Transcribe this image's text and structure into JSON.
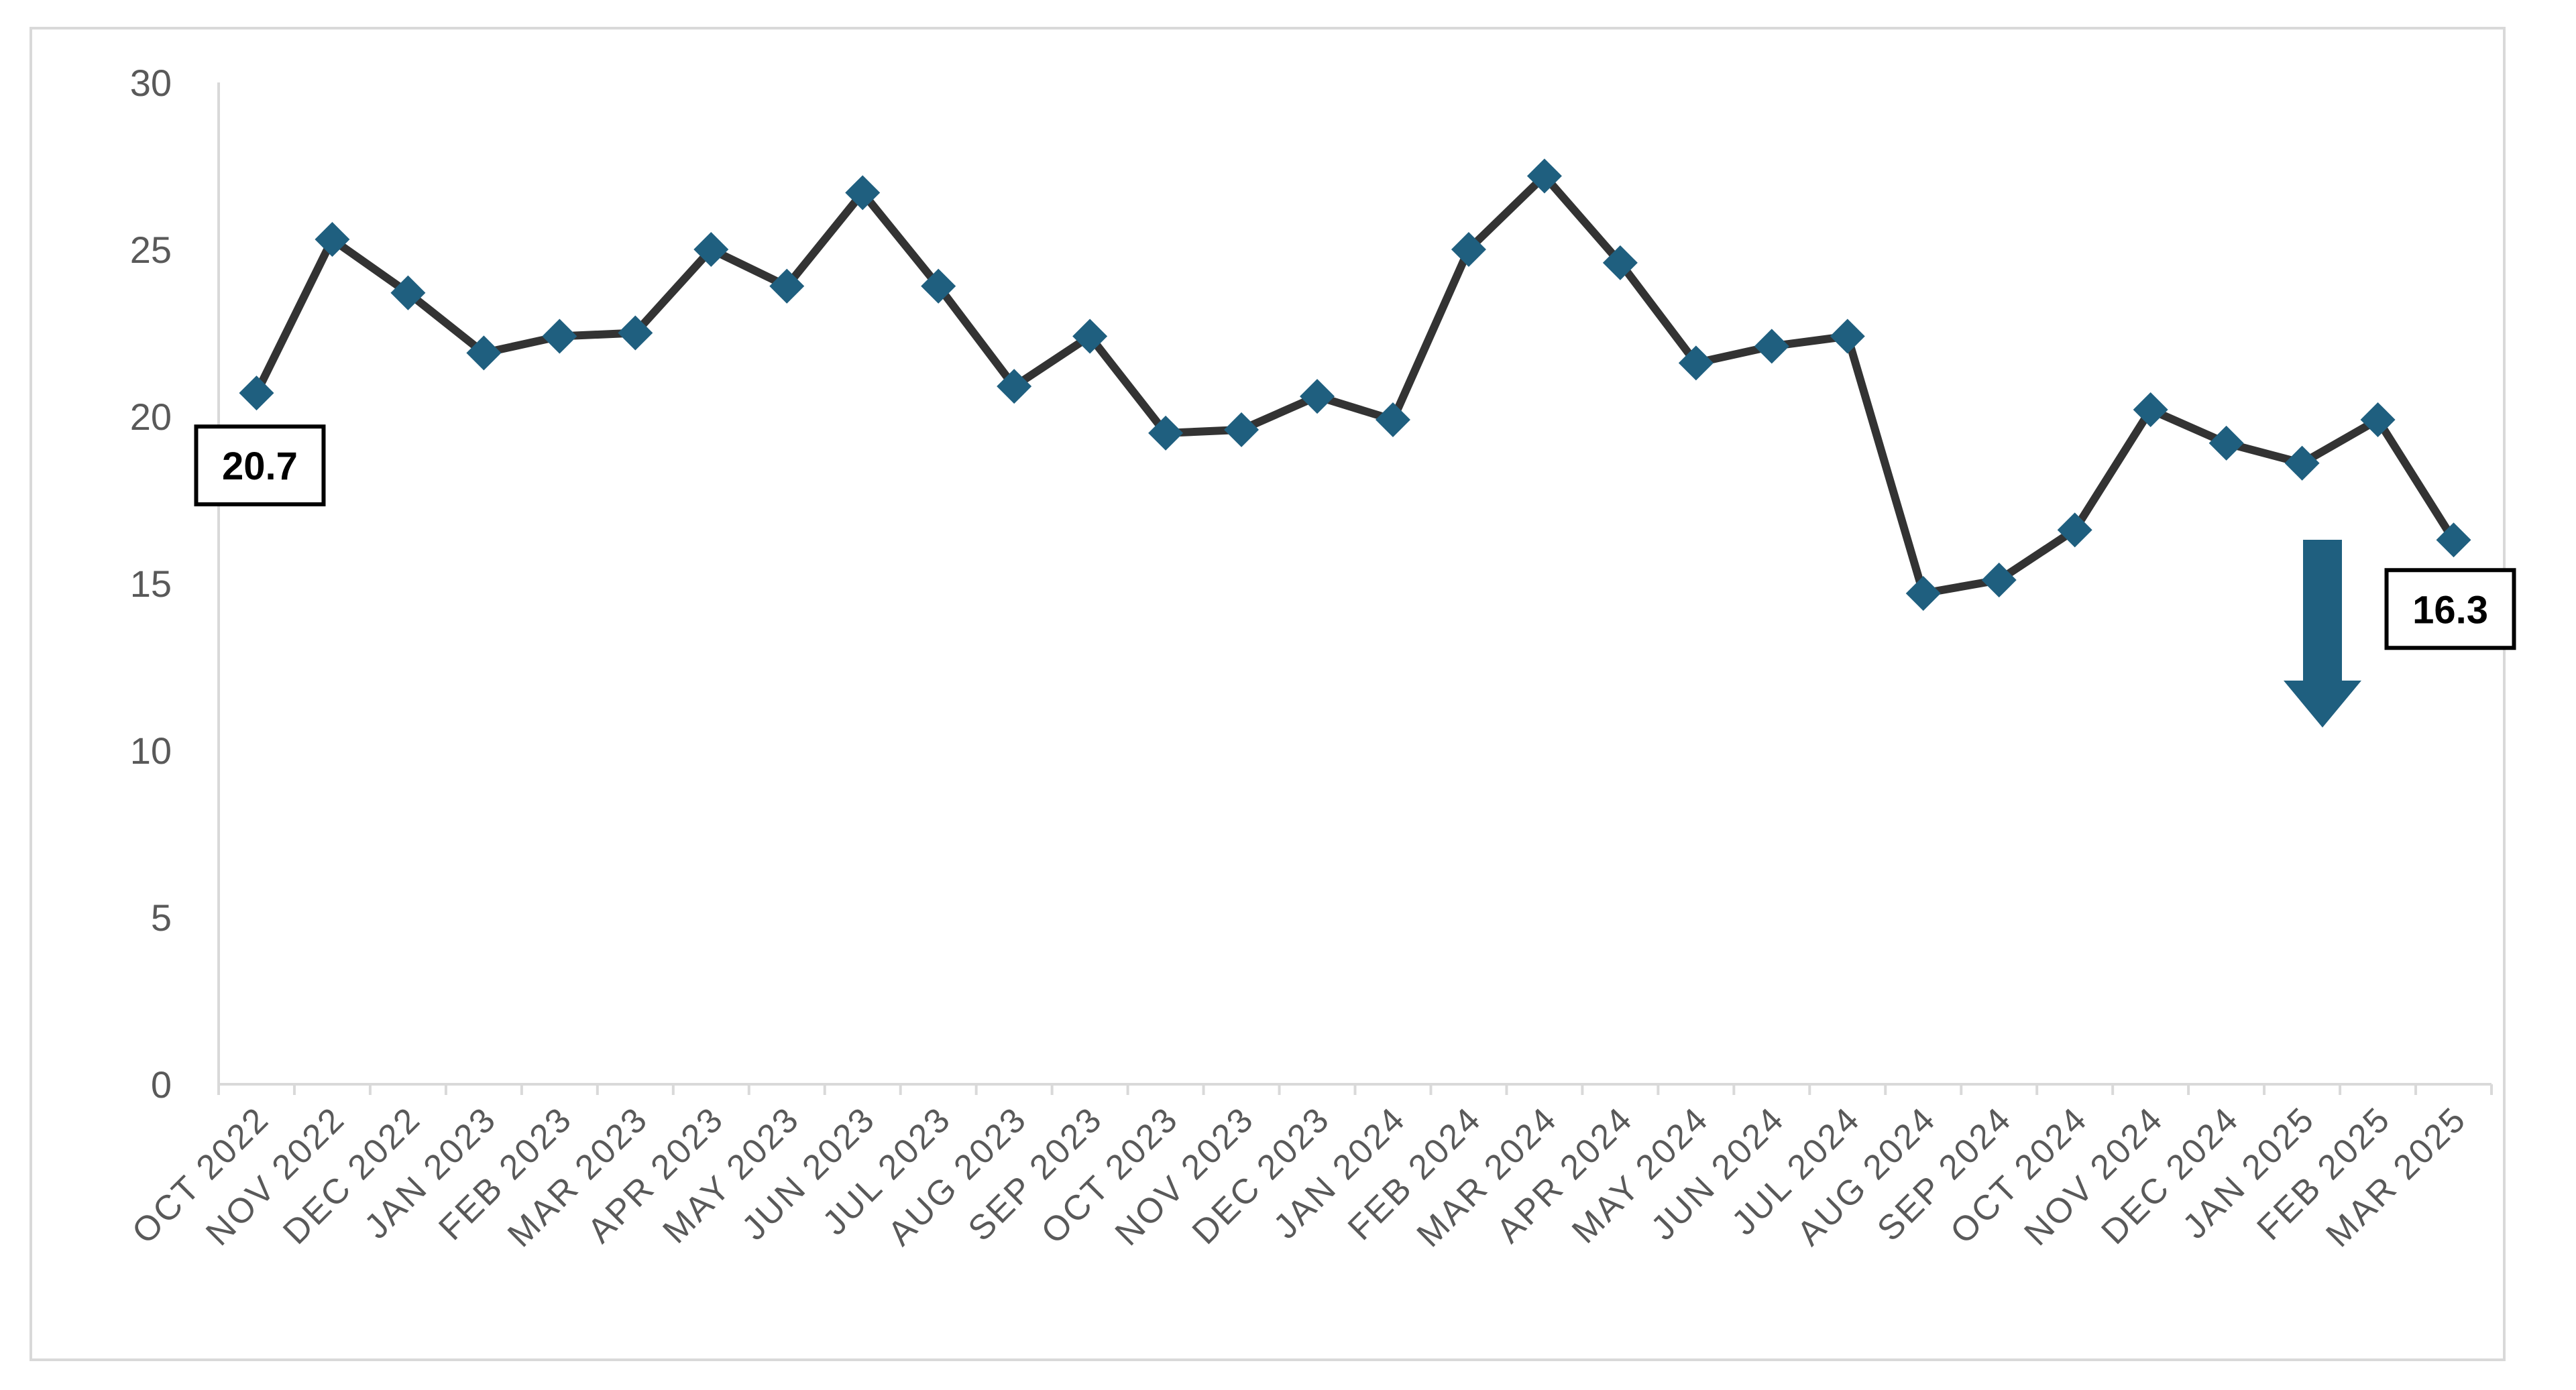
{
  "chart_data": {
    "type": "line",
    "title": "",
    "xlabel": "",
    "ylabel": "",
    "ylim": [
      0,
      30
    ],
    "yticks": [
      0,
      5,
      10,
      15,
      20,
      25,
      30
    ],
    "grid": false,
    "legend": "none",
    "categories": [
      "OCT 2022",
      "NOV 2022",
      "DEC 2022",
      "JAN 2023",
      "FEB 2023",
      "MAR 2023",
      "APR 2023",
      "MAY 2023",
      "JUN 2023",
      "JUL 2023",
      "AUG 2023",
      "SEP 2023",
      "OCT 2023",
      "NOV 2023",
      "DEC 2023",
      "JAN 2024",
      "FEB 2024",
      "MAR 2024",
      "APR 2024",
      "MAY 2024",
      "JUN 2024",
      "JUL 2024",
      "AUG 2024",
      "SEP 2024",
      "OCT 2024",
      "NOV 2024",
      "DEC 2024",
      "JAN 2025",
      "FEB 2025",
      "MAR 2025"
    ],
    "series": [
      {
        "values": [
          20.7,
          25.3,
          23.7,
          21.9,
          22.4,
          22.5,
          25.0,
          23.9,
          26.7,
          23.9,
          20.9,
          22.4,
          19.5,
          19.6,
          20.6,
          19.9,
          25.0,
          27.2,
          24.6,
          21.6,
          22.1,
          22.4,
          14.7,
          15.1,
          16.6,
          20.2,
          19.2,
          18.6,
          19.9,
          16.3
        ],
        "color": "#333333",
        "marker_color": "#1f5f7f"
      }
    ],
    "annotations": [
      {
        "label": "20.7",
        "index": 0
      },
      {
        "label": "16.3",
        "index": 29
      }
    ],
    "trend_arrow": {
      "direction": "down",
      "color": "#1f5f7f"
    },
    "axis_color": "#d9d9d9"
  }
}
